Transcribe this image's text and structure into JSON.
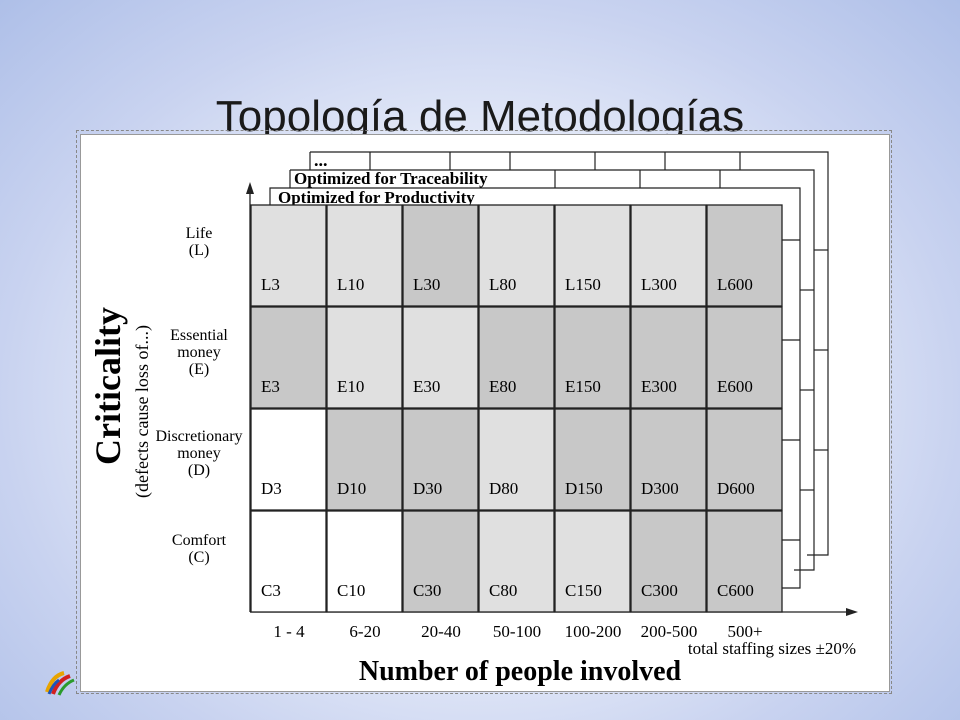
{
  "slide": {
    "title": "Topología de Metodologías"
  },
  "layers": {
    "top": "...",
    "traceability": "Optimized for Traceability",
    "productivity": "Optimized for Productivity"
  },
  "criticality": {
    "title": "Criticality",
    "subtitle": "(defects cause loss of...)",
    "rows": [
      {
        "lines": [
          "Life",
          "(L)"
        ],
        "cells": [
          "L3",
          "L10",
          "L30",
          "L80",
          "L150",
          "L300",
          "L600"
        ]
      },
      {
        "lines": [
          "Essential",
          "money",
          "(E)"
        ],
        "cells": [
          "E3",
          "E10",
          "E30",
          "E80",
          "E150",
          "E300",
          "E600"
        ]
      },
      {
        "lines": [
          "Discretionary",
          "money",
          "(D)"
        ],
        "cells": [
          "D3",
          "D10",
          "D30",
          "D80",
          "D150",
          "D300",
          "D600"
        ]
      },
      {
        "lines": [
          "Comfort",
          "(C)"
        ],
        "cells": [
          "C3",
          "C10",
          "C30",
          "C80",
          "C150",
          "C300",
          "C600"
        ]
      }
    ]
  },
  "people": {
    "ranges": [
      "1 - 4",
      "6-20",
      "20-40",
      "50-100",
      "100-200",
      "200-500",
      "500+"
    ],
    "note": "total staffing sizes ±20%",
    "title": "Number of people involved"
  },
  "colors": {
    "white": "#ffffff",
    "light": "#e0e0e0",
    "mid": "#c8c8c8",
    "dark": "#b0b0b0"
  },
  "shading": [
    [
      "light",
      "light",
      "mid",
      "light",
      "light",
      "light",
      "mid"
    ],
    [
      "mid",
      "light",
      "light",
      "mid",
      "mid",
      "mid",
      "mid"
    ],
    [
      "white",
      "mid",
      "mid",
      "light",
      "mid",
      "mid",
      "mid"
    ],
    [
      "white",
      "white",
      "mid",
      "light",
      "light",
      "mid",
      "mid"
    ]
  ]
}
